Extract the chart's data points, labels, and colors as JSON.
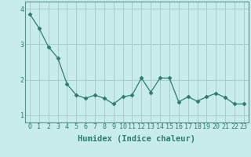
{
  "x": [
    0,
    1,
    2,
    3,
    4,
    5,
    6,
    7,
    8,
    9,
    10,
    11,
    12,
    13,
    14,
    15,
    16,
    17,
    18,
    19,
    20,
    21,
    22,
    23
  ],
  "y": [
    3.85,
    3.45,
    2.93,
    2.62,
    1.88,
    1.57,
    1.48,
    1.57,
    1.48,
    1.32,
    1.52,
    1.57,
    2.05,
    1.65,
    2.05,
    2.05,
    1.38,
    1.52,
    1.4,
    1.52,
    1.62,
    1.5,
    1.32,
    1.32
  ],
  "line_color": "#2d7d6e",
  "marker": "D",
  "marker_size": 2.5,
  "bg_color": "#c8ecec",
  "grid_color": "#aacccc",
  "xlabel": "Humidex (Indice chaleur)",
  "xlim": [
    -0.5,
    23.5
  ],
  "ylim": [
    0.8,
    4.2
  ],
  "yticks": [
    1,
    2,
    3,
    4
  ],
  "xticks": [
    0,
    1,
    2,
    3,
    4,
    5,
    6,
    7,
    8,
    9,
    10,
    11,
    12,
    13,
    14,
    15,
    16,
    17,
    18,
    19,
    20,
    21,
    22,
    23
  ],
  "tick_fontsize": 6,
  "xlabel_fontsize": 7.5,
  "label_color": "#2d7d6e",
  "spine_color": "#5a9090"
}
